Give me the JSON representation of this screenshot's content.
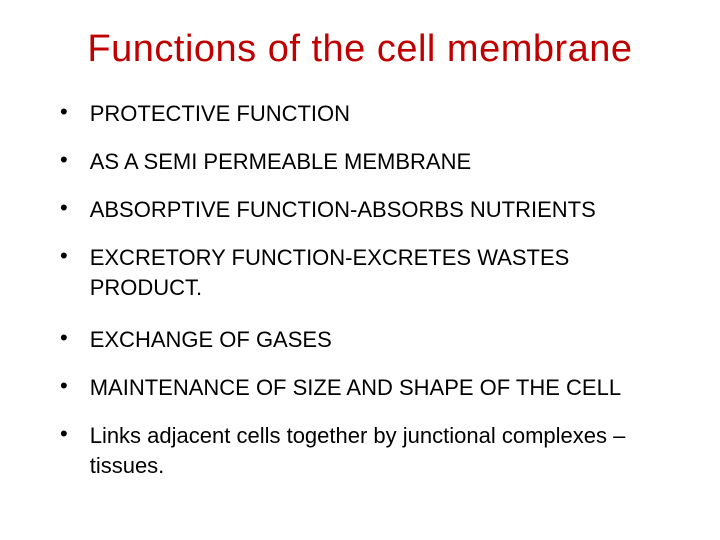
{
  "title": "Functions of the cell membrane",
  "bullets": [
    {
      "text": "PROTECTIVE FUNCTION"
    },
    {
      "text": " AS A SEMI PERMEABLE MEMBRANE"
    },
    {
      "text": "ABSORPTIVE FUNCTION-ABSORBS NUTRIENTS"
    },
    {
      "text": "EXCRETORY FUNCTION-EXCRETES WASTES PRODUCT."
    },
    {
      "text": "EXCHANGE OF GASES"
    },
    {
      "text": " MAINTENANCE OF SIZE AND SHAPE   OF THE CELL"
    },
    {
      "text": "Links adjacent cells together by junctional complexes –tissues."
    }
  ],
  "colors": {
    "title": "#c00000",
    "body_text": "#000000",
    "background": "#ffffff"
  },
  "typography": {
    "title_fontsize": 38,
    "body_fontsize": 22,
    "font_family": "Arial"
  }
}
